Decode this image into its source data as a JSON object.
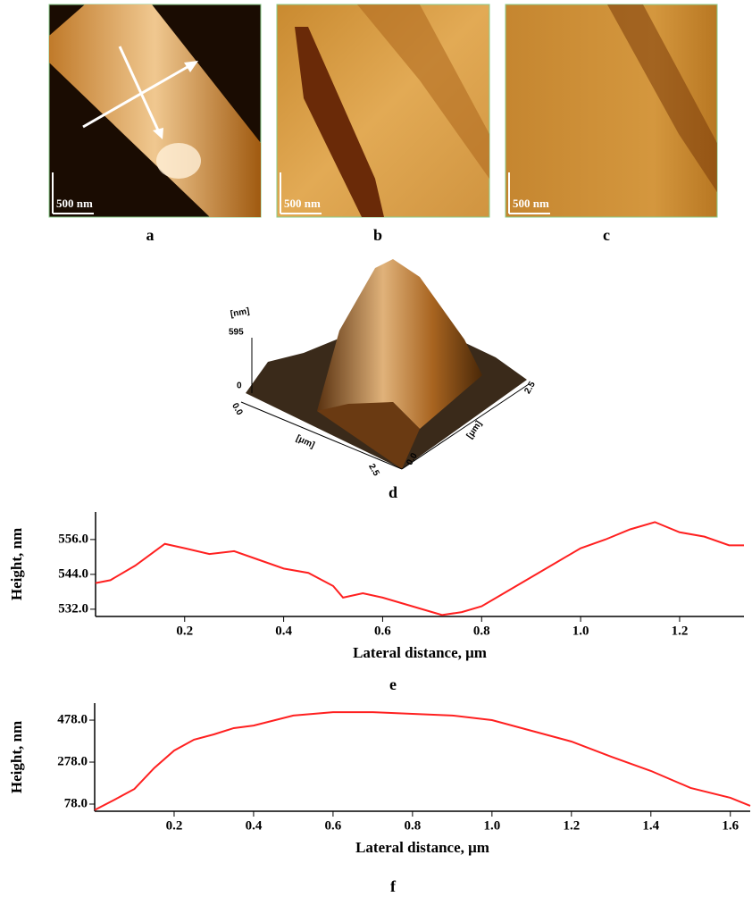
{
  "images": [
    {
      "label": "a",
      "scale_bar": "500 nm"
    },
    {
      "label": "b",
      "scale_bar": "500 nm"
    },
    {
      "label": "c",
      "scale_bar": "500 nm"
    }
  ],
  "surface_3d": {
    "label": "d",
    "z_unit": "[nm]",
    "z_max": "595",
    "z_min": "0",
    "x_start": "0.0",
    "x_end": "2.5",
    "x_unit": "[μm]",
    "y_start": "0.0",
    "y_end": "2.5",
    "y_unit": "[μm]"
  },
  "chart_data": [
    {
      "type": "line",
      "panel_label": "e",
      "x_label": "Lateral distance, μm",
      "y_label": "Height, nm",
      "x": [
        0.02,
        0.05,
        0.1,
        0.16,
        0.2,
        0.25,
        0.3,
        0.35,
        0.4,
        0.45,
        0.5,
        0.52,
        0.56,
        0.6,
        0.65,
        0.7,
        0.72,
        0.76,
        0.8,
        0.85,
        0.9,
        0.95,
        1.0,
        1.05,
        1.1,
        1.15,
        1.2,
        1.25,
        1.3,
        1.33
      ],
      "series": [
        {
          "color": "#ff2020",
          "values": [
            541,
            542,
            547,
            554.5,
            553,
            551,
            552,
            549,
            546,
            544.5,
            540,
            536,
            537.5,
            536,
            533.5,
            531,
            530,
            531,
            533,
            538,
            543,
            548,
            553,
            556,
            559.5,
            562,
            558.5,
            557,
            554,
            554
          ]
        }
      ],
      "xlim": [
        0.02,
        1.33
      ],
      "xticks": [
        0.2,
        0.4,
        0.6,
        0.8,
        {
          "value": 1,
          "label": "1.0"
        },
        1.2
      ],
      "ylim": [
        529.5,
        565.5
      ],
      "yticks": [
        {
          "value": 556,
          "label": "556.0"
        },
        {
          "value": 544,
          "label": "544.0"
        },
        {
          "value": 532,
          "label": "532.0"
        }
      ]
    },
    {
      "type": "line",
      "panel_label": "f",
      "x_label": "Lateral distance, μm",
      "y_label": "Height, nm",
      "x": [
        0,
        0.05,
        0.1,
        0.15,
        0.2,
        0.25,
        0.3,
        0.35,
        0.4,
        0.5,
        0.6,
        0.7,
        0.8,
        0.9,
        1.0,
        1.1,
        1.2,
        1.3,
        1.4,
        1.5,
        1.6,
        1.65
      ],
      "series": [
        {
          "color": "#ff2020",
          "values": [
            50,
            99,
            150,
            250,
            333,
            385,
            410,
            440,
            452,
            500,
            516,
            516,
            508,
            500,
            478,
            427,
            376,
            304,
            236,
            155,
            108,
            70
          ]
        }
      ],
      "xlim": [
        0,
        1.65
      ],
      "xticks": [
        0.2,
        0.4,
        0.6,
        0.8,
        {
          "value": 1,
          "label": "1.0"
        },
        1.2,
        1.4,
        1.6
      ],
      "ylim": [
        44,
        559
      ],
      "yticks": [
        {
          "value": 478,
          "label": "478.0"
        },
        {
          "value": 278,
          "label": "278.0"
        },
        {
          "value": 78,
          "label": "78.0"
        }
      ]
    }
  ]
}
